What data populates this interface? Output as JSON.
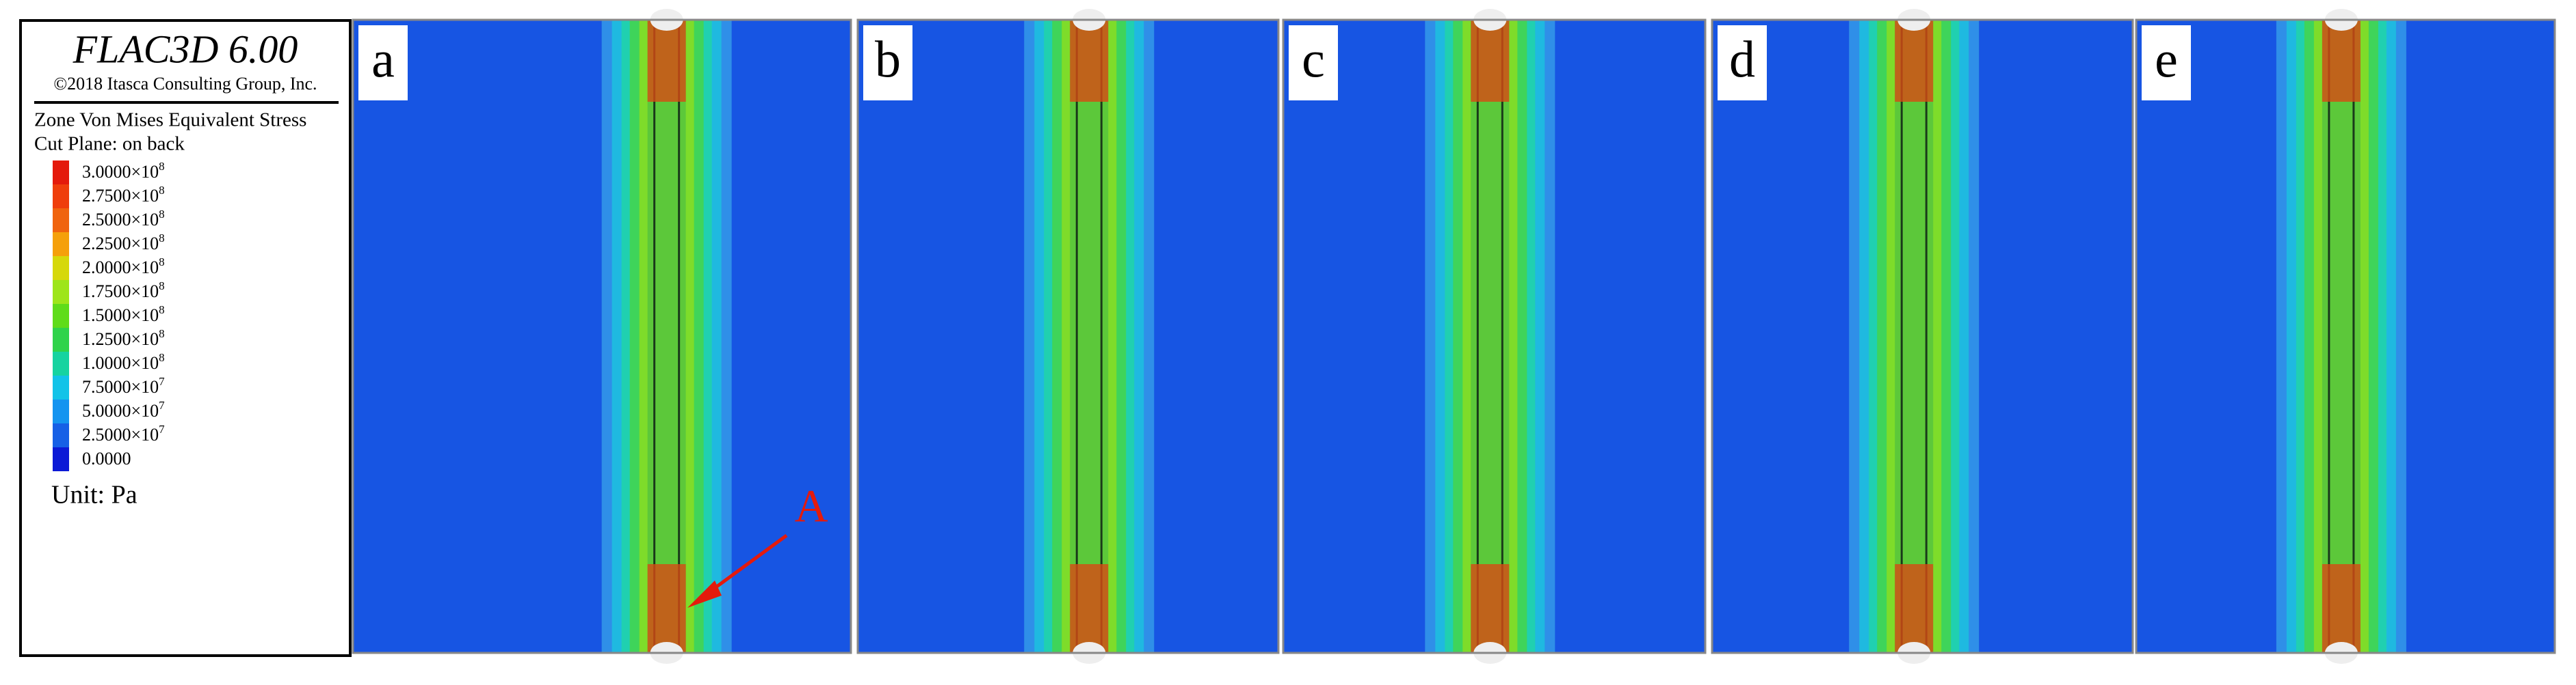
{
  "legend": {
    "title": "FLAC3D 6.00",
    "copyright": "©2018 Itasca Consulting Group, Inc.",
    "quantity": "Zone Von Mises Equivalent Stress",
    "cut_plane": "Cut Plane: on back",
    "entries": [
      {
        "label": "3.0000×10",
        "exponent": "8",
        "color": "#e41a0c"
      },
      {
        "label": "2.7500×10",
        "exponent": "8",
        "color": "#ef3e0c"
      },
      {
        "label": "2.5000×10",
        "exponent": "8",
        "color": "#f0640e"
      },
      {
        "label": "2.2500×10",
        "exponent": "8",
        "color": "#f5a00a"
      },
      {
        "label": "2.0000×10",
        "exponent": "8",
        "color": "#d6d80a"
      },
      {
        "label": "1.7500×10",
        "exponent": "8",
        "color": "#9ee51a"
      },
      {
        "label": "1.5000×10",
        "exponent": "8",
        "color": "#5fdc1a"
      },
      {
        "label": "1.2500×10",
        "exponent": "8",
        "color": "#2fd34a"
      },
      {
        "label": "1.0000×10",
        "exponent": "8",
        "color": "#16d3a0"
      },
      {
        "label": "7.5000×10",
        "exponent": "7",
        "color": "#12c3e8"
      },
      {
        "label": "5.0000×10",
        "exponent": "7",
        "color": "#1494f0"
      },
      {
        "label": "2.5000×10",
        "exponent": "7",
        "color": "#1660e6"
      },
      {
        "label": "0.0000",
        "color": "#0c1ad6"
      }
    ],
    "unit": "Unit: Pa"
  },
  "panels": [
    {
      "label": "a"
    },
    {
      "label": "b"
    },
    {
      "label": "c"
    },
    {
      "label": "d"
    },
    {
      "label": "e"
    }
  ],
  "annotation": {
    "label": "A"
  }
}
